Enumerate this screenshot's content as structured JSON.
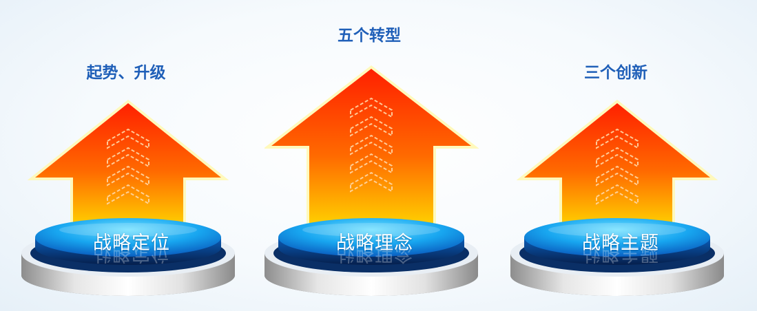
{
  "items": [
    {
      "top_label": "起势、升级",
      "caption": "战略定位"
    },
    {
      "top_label": "五个转型",
      "caption": "战略理念"
    },
    {
      "top_label": "三个创新",
      "caption": "战略主题"
    }
  ],
  "colors": {
    "label_text": "#1f5fb8",
    "arrow_top": "#ff2a00",
    "arrow_bottom": "#ffd000",
    "button_light": "#4fd0ff",
    "button_dark": "#0a6fcf"
  },
  "icons": [
    "up-arrow-icon",
    "chevron-icon",
    "pedestal-button"
  ]
}
